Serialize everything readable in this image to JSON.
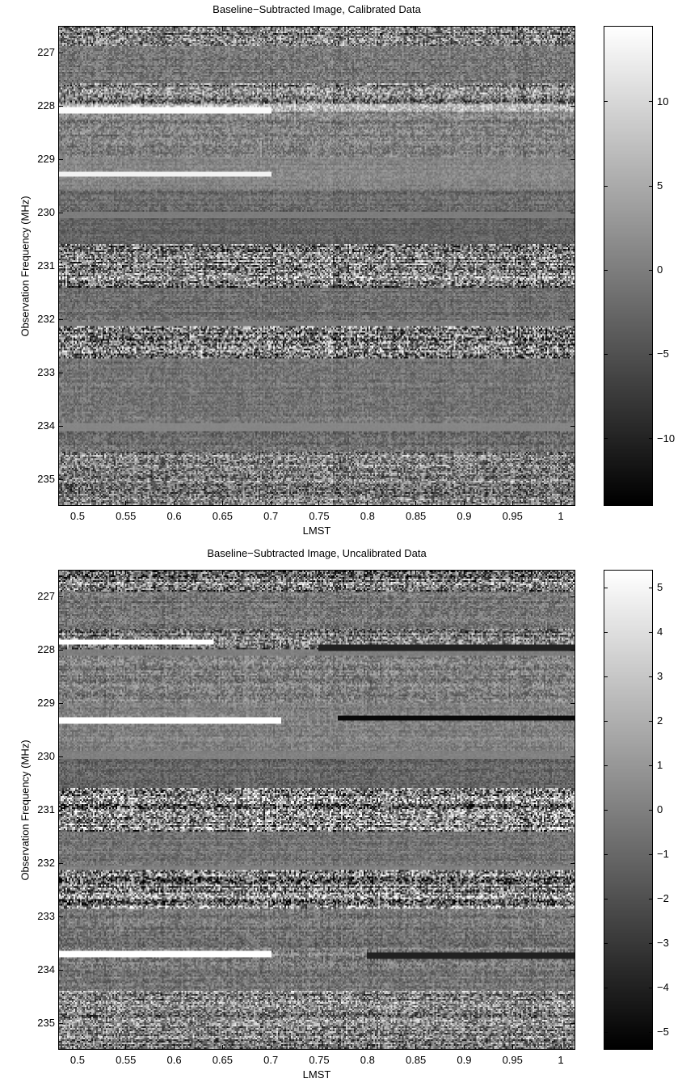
{
  "charts": [
    {
      "title": "Baseline−Subtracted Image, Calibrated Data",
      "xlabel": "LMST",
      "ylabel": "Observation Frequency (MHz)",
      "xticks": [
        "0.5",
        "0.55",
        "0.6",
        "0.65",
        "0.7",
        "0.75",
        "0.8",
        "0.85",
        "0.9",
        "0.95",
        "1"
      ],
      "yticks": [
        "227",
        "228",
        "229",
        "230",
        "231",
        "232",
        "233",
        "234",
        "235"
      ],
      "cbar_ticks": [
        "10",
        "5",
        "0",
        "−5",
        "−10"
      ]
    },
    {
      "title": "Baseline−Subtracted Image, Uncalibrated Data",
      "xlabel": "LMST",
      "ylabel": "Observation Frequency (MHz)",
      "xticks": [
        "0.5",
        "0.55",
        "0.6",
        "0.65",
        "0.7",
        "0.75",
        "0.8",
        "0.85",
        "0.9",
        "0.95",
        "1"
      ],
      "yticks": [
        "227",
        "228",
        "229",
        "230",
        "231",
        "232",
        "233",
        "234",
        "235"
      ],
      "cbar_ticks": [
        "5",
        "4",
        "3",
        "2",
        "1",
        "0",
        "−1",
        "−2",
        "−3",
        "−4",
        "−5"
      ]
    }
  ],
  "chart_data": [
    {
      "type": "heatmap",
      "title": "Baseline−Subtracted Image, Calibrated Data",
      "xlabel": "LMST",
      "ylabel": "Observation Frequency (MHz)",
      "xlim": [
        0.48,
        1.015
      ],
      "ylim": [
        235.5,
        226.5
      ],
      "x_ticks": [
        0.5,
        0.55,
        0.6,
        0.65,
        0.7,
        0.75,
        0.8,
        0.85,
        0.9,
        0.95,
        1.0
      ],
      "y_ticks": [
        227,
        228,
        229,
        230,
        231,
        232,
        233,
        234,
        235
      ],
      "colormap": "gray",
      "clim": [
        -14,
        14.5
      ],
      "colorbar_ticks": [
        10,
        5,
        0,
        -5,
        -10
      ],
      "colorbar_position": "right",
      "bands": [
        {
          "y0": 226.5,
          "y1": 226.85,
          "level": 0,
          "noise": 14,
          "mean": 0
        },
        {
          "y0": 226.85,
          "y1": 227.55,
          "level": 0,
          "noise": 5,
          "mean": -1
        },
        {
          "y0": 227.55,
          "y1": 227.95,
          "level": 0,
          "noise": 13,
          "mean": 0
        },
        {
          "y0": 227.95,
          "y1": 228.1,
          "level": 0,
          "noise": 8,
          "mean": 6
        },
        {
          "y0": 228.1,
          "y1": 228.95,
          "level": 0,
          "noise": 6,
          "mean": 0
        },
        {
          "y0": 228.95,
          "y1": 229.55,
          "level": 0,
          "noise": 3,
          "mean": 1
        },
        {
          "y0": 229.55,
          "y1": 230.0,
          "level": 0,
          "noise": 4,
          "mean": -2
        },
        {
          "y0": 230.0,
          "y1": 230.1,
          "level": 0,
          "noise": 0.5,
          "mean": 0
        },
        {
          "y0": 230.1,
          "y1": 230.6,
          "level": 0,
          "noise": 3,
          "mean": -3
        },
        {
          "y0": 230.6,
          "y1": 231.4,
          "level": 0,
          "noise": 16,
          "mean": 0
        },
        {
          "y0": 231.4,
          "y1": 232.05,
          "level": 0,
          "noise": 4,
          "mean": -2
        },
        {
          "y0": 232.05,
          "y1": 232.15,
          "level": 0,
          "noise": 0.5,
          "mean": 0
        },
        {
          "y0": 232.15,
          "y1": 232.75,
          "level": 0,
          "noise": 18,
          "mean": 0
        },
        {
          "y0": 232.75,
          "y1": 233.95,
          "level": 0,
          "noise": 4,
          "mean": -1
        },
        {
          "y0": 233.95,
          "y1": 234.1,
          "level": 0,
          "noise": 0.5,
          "mean": 1
        },
        {
          "y0": 234.1,
          "y1": 234.5,
          "level": 0,
          "noise": 5,
          "mean": -2
        },
        {
          "y0": 234.5,
          "y1": 235.5,
          "level": 0,
          "noise": 12,
          "mean": 0
        }
      ],
      "streaks": [
        {
          "y": 228.07,
          "x0": 0.48,
          "x1": 0.7,
          "value": 14
        },
        {
          "y": 229.27,
          "x0": 0.48,
          "x1": 0.7,
          "value": 13
        }
      ]
    },
    {
      "type": "heatmap",
      "title": "Baseline−Subtracted Image, Uncalibrated Data",
      "xlabel": "LMST",
      "ylabel": "Observation Frequency (MHz)",
      "xlim": [
        0.48,
        1.015
      ],
      "ylim": [
        235.5,
        226.5
      ],
      "x_ticks": [
        0.5,
        0.55,
        0.6,
        0.65,
        0.7,
        0.75,
        0.8,
        0.85,
        0.9,
        0.95,
        1.0
      ],
      "y_ticks": [
        227,
        228,
        229,
        230,
        231,
        232,
        233,
        234,
        235
      ],
      "colormap": "gray",
      "clim": [
        -5.4,
        5.4
      ],
      "colorbar_ticks": [
        5,
        4,
        3,
        2,
        1,
        0,
        -1,
        -2,
        -3,
        -4,
        -5
      ],
      "colorbar_position": "right",
      "bands": [
        {
          "y0": 226.5,
          "y1": 226.9,
          "level": 0,
          "noise": 6,
          "mean": 0
        },
        {
          "y0": 226.9,
          "y1": 227.6,
          "level": 0,
          "noise": 2,
          "mean": -0.5
        },
        {
          "y0": 227.6,
          "y1": 228.0,
          "level": 0,
          "noise": 5,
          "mean": 0
        },
        {
          "y0": 228.0,
          "y1": 228.12,
          "level": 0,
          "noise": 0.4,
          "mean": 0
        },
        {
          "y0": 228.12,
          "y1": 229.0,
          "level": 0,
          "noise": 2.5,
          "mean": 0
        },
        {
          "y0": 229.0,
          "y1": 229.9,
          "level": 0,
          "noise": 1.5,
          "mean": 0
        },
        {
          "y0": 229.9,
          "y1": 230.05,
          "level": 0,
          "noise": 0.4,
          "mean": 0
        },
        {
          "y0": 230.05,
          "y1": 230.6,
          "level": 0,
          "noise": 1.5,
          "mean": -1
        },
        {
          "y0": 230.6,
          "y1": 231.4,
          "level": 0,
          "noise": 7,
          "mean": 0
        },
        {
          "y0": 231.4,
          "y1": 232.05,
          "level": 0,
          "noise": 1.5,
          "mean": -0.5
        },
        {
          "y0": 232.05,
          "y1": 232.15,
          "level": 0,
          "noise": 0.4,
          "mean": 0
        },
        {
          "y0": 232.15,
          "y1": 232.85,
          "level": 0,
          "noise": 7,
          "mean": 0
        },
        {
          "y0": 232.85,
          "y1": 233.6,
          "level": 0,
          "noise": 2,
          "mean": -0.5
        },
        {
          "y0": 233.6,
          "y1": 233.95,
          "level": 0,
          "noise": 2.5,
          "mean": 0
        },
        {
          "y0": 233.95,
          "y1": 234.4,
          "level": 0,
          "noise": 2,
          "mean": -0.5
        },
        {
          "y0": 234.4,
          "y1": 235.5,
          "level": 0,
          "noise": 5,
          "mean": 0
        }
      ],
      "streaks": [
        {
          "y": 227.85,
          "x0": 0.48,
          "x1": 0.64,
          "value": 5.4
        },
        {
          "y": 229.32,
          "x0": 0.48,
          "x1": 0.71,
          "value": 5.4
        },
        {
          "y": 229.27,
          "x0": 0.77,
          "x1": 1.015,
          "value": -5.0
        },
        {
          "y": 227.95,
          "x0": 0.75,
          "x1": 1.015,
          "value": -4.0
        },
        {
          "y": 233.72,
          "x0": 0.48,
          "x1": 0.7,
          "value": 5.4
        },
        {
          "y": 233.75,
          "x0": 0.8,
          "x1": 1.015,
          "value": -4.0
        }
      ]
    }
  ]
}
